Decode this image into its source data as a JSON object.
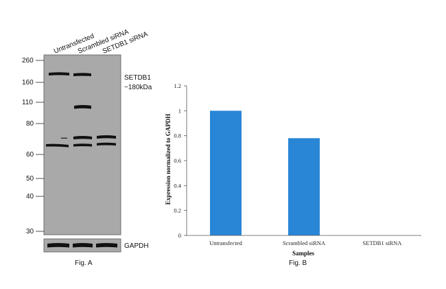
{
  "figure_a": {
    "lanes": [
      "Untransfected",
      "Scrambled siRNA",
      "SETDB1 siRNA"
    ],
    "mw_markers": [
      "260",
      "160",
      "110",
      "80",
      "60",
      "50",
      "40",
      "30"
    ],
    "target_name": "SETDB1",
    "target_size": "~180kDa",
    "loading_control": "GAPDH",
    "caption": "Fig. A",
    "colors": {
      "membrane": "#a9a9a9",
      "band": "#111111"
    }
  },
  "chart_data": {
    "type": "bar",
    "categories": [
      "Untransfected",
      "Scrambled siRNA",
      "SETDB1 siRNA"
    ],
    "values": [
      1.0,
      0.78,
      0.0
    ],
    "yticks": [
      "0",
      "0.2",
      "0.4",
      "0.6",
      "0.8",
      "1",
      "1.2"
    ],
    "ylim": [
      0,
      1.2
    ],
    "xlabel": "Samples",
    "ylabel": "Expression normalized to GAPDH",
    "caption": "Fig. B",
    "colors": {
      "bar": "#2986d6",
      "axis": "#555555"
    }
  }
}
